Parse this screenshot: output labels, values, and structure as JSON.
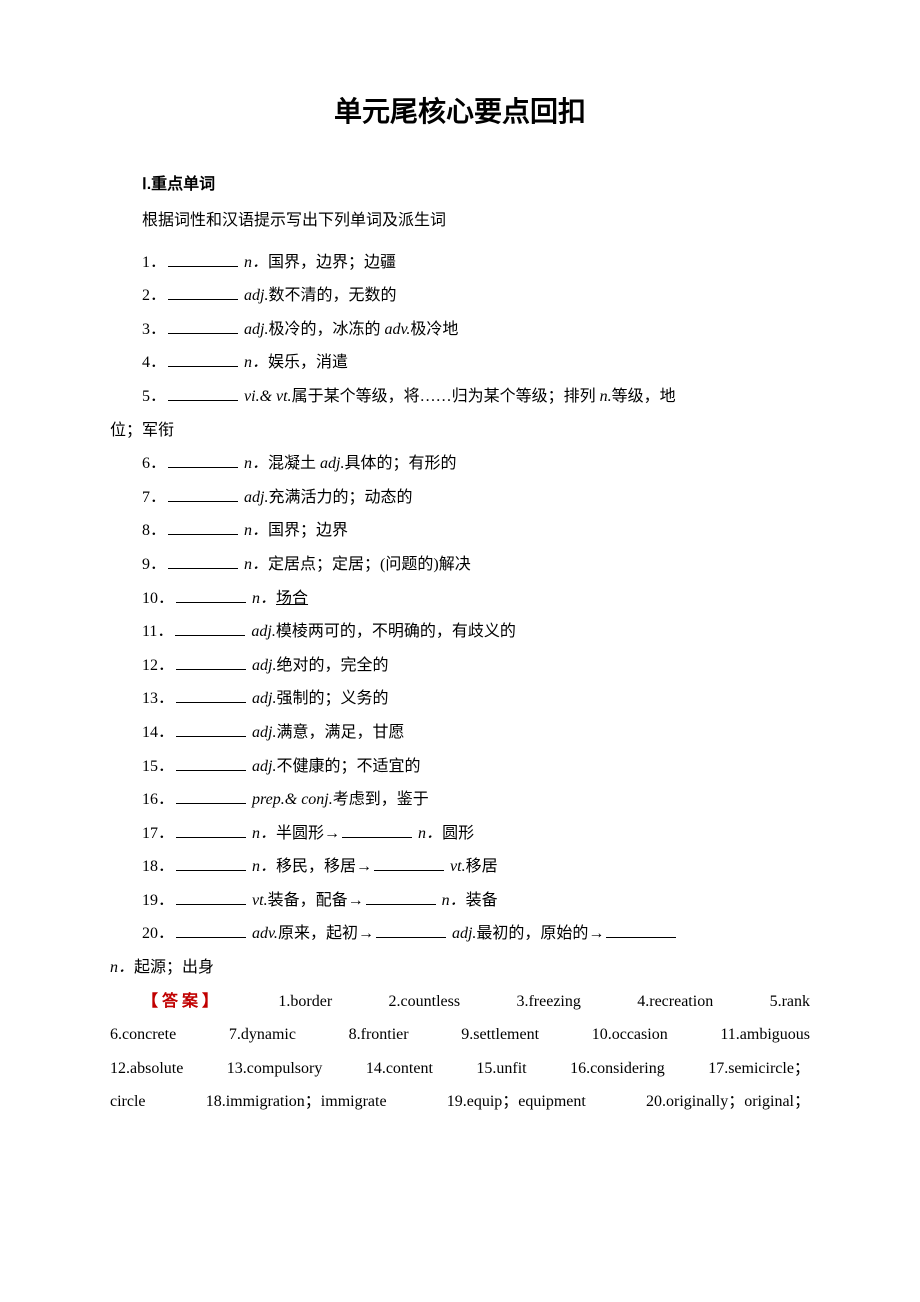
{
  "title": "单元尾核心要点回扣",
  "section_head": "Ⅰ.重点单词",
  "instruction": "根据词性和汉语提示写出下列单词及派生词",
  "items": [
    {
      "num": "1．",
      "parts": [
        {
          "pos": "n．",
          "def": "国界，边界；边疆"
        }
      ]
    },
    {
      "num": "2．",
      "parts": [
        {
          "pos": "adj.",
          "def": "数不清的，无数的"
        }
      ]
    },
    {
      "num": "3．",
      "parts": [
        {
          "pos": "adj.",
          "def": "极冷的，冰冻的 "
        },
        {
          "pos": "adv.",
          "def": "极冷地"
        }
      ],
      "noblank2": true
    },
    {
      "num": "4．",
      "parts": [
        {
          "pos": "n．",
          "def": "娱乐，消遣"
        }
      ]
    },
    {
      "num": "5．",
      "parts": [
        {
          "pos": "vi.& vt.",
          "def": "属于某个等级，将……归为某个等级；排列 "
        },
        {
          "pos": "n.",
          "def": "等级，地位；军衔"
        }
      ],
      "noblank2": true,
      "wrap": true
    },
    {
      "num": "6．",
      "parts": [
        {
          "pos": "n．",
          "def": "混凝土 "
        },
        {
          "pos": "adj.",
          "def": "具体的；有形的"
        }
      ],
      "noblank2": true
    },
    {
      "num": "7．",
      "parts": [
        {
          "pos": "adj.",
          "def": "充满活力的；动态的"
        }
      ]
    },
    {
      "num": "8．",
      "parts": [
        {
          "pos": "n．",
          "def": "国界；边界"
        }
      ]
    },
    {
      "num": "9．",
      "parts": [
        {
          "pos": "n．",
          "def": "定居点；定居；(问题的)解决"
        }
      ]
    },
    {
      "num": "10．",
      "parts": [
        {
          "pos": "n．",
          "def": "场合"
        }
      ],
      "underline_def": true
    },
    {
      "num": "11．",
      "parts": [
        {
          "pos": "adj.",
          "def": "模棱两可的，不明确的，有歧义的"
        }
      ]
    },
    {
      "num": "12．",
      "parts": [
        {
          "pos": "adj.",
          "def": "绝对的，完全的"
        }
      ]
    },
    {
      "num": "13．",
      "parts": [
        {
          "pos": "adj.",
          "def": "强制的；义务的"
        }
      ]
    },
    {
      "num": "14．",
      "parts": [
        {
          "pos": "adj.",
          "def": "满意，满足，甘愿"
        }
      ]
    },
    {
      "num": "15．",
      "parts": [
        {
          "pos": "adj.",
          "def": "不健康的；不适宜的"
        }
      ]
    },
    {
      "num": "16．",
      "parts": [
        {
          "pos": "prep.& conj.",
          "def": "考虑到，鉴于"
        }
      ]
    },
    {
      "num": "17．",
      "parts": [
        {
          "pos": "n．",
          "def": "半圆形→"
        },
        {
          "pos": "n．",
          "def": "圆形"
        }
      ]
    },
    {
      "num": "18．",
      "parts": [
        {
          "pos": "n．",
          "def": "移民，移居→"
        },
        {
          "pos": "vt.",
          "def": "移居"
        }
      ]
    },
    {
      "num": "19．",
      "parts": [
        {
          "pos": "vt.",
          "def": "装备，配备→"
        },
        {
          "pos": "n．",
          "def": "装备"
        }
      ]
    },
    {
      "num": "20．",
      "parts": [
        {
          "pos": "adv.",
          "def": "原来，起初→"
        },
        {
          "pos": "adj.",
          "def": "最初的，原始的→"
        }
      ],
      "tail_blank": true,
      "wrap_tail": {
        "pos": "n．",
        "def": "起源；出身"
      }
    }
  ],
  "answer_label": "【答案】",
  "answers_lines": [
    [
      "1.border",
      "2.countless",
      "3.freezing",
      "4.recreation",
      "5.rank"
    ],
    [
      "6.concrete",
      "7.dynamic",
      "8.frontier",
      "9.settlement",
      "10.occasion",
      "11.ambiguous"
    ],
    [
      "12.absolute",
      "13.compulsory",
      "14.content",
      "15.unfit",
      "16.considering",
      "17.semicircle；"
    ],
    [
      "circle",
      "18.immigration；immigrate",
      "19.equip；equipment",
      "20.originally；original；"
    ]
  ],
  "colors": {
    "text": "#000000",
    "answer_label": "#c00000",
    "background": "#ffffff"
  },
  "typography": {
    "title_fontsize": 28,
    "body_fontsize": 16,
    "line_height": 2.1
  }
}
